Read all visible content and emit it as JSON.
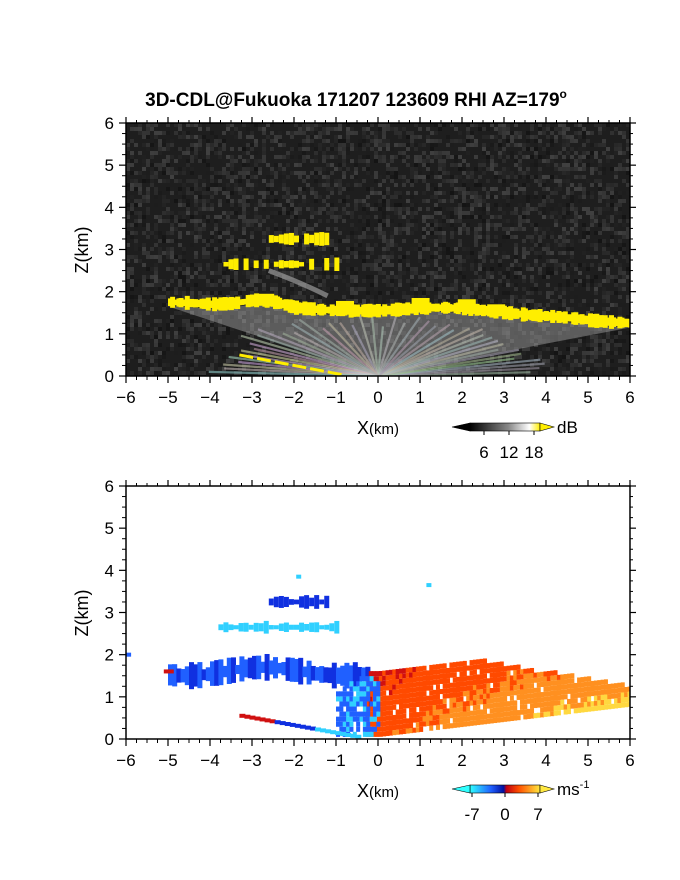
{
  "title": "3D-CDL@Fukuoka 171207 123609 RHI AZ=179",
  "title_degree": "o",
  "chart_data": [
    {
      "type": "heatmap",
      "quantity": "reflectivity",
      "xlabel_main": "X",
      "xlabel_unit": "(km)",
      "ylabel": "Z(km)",
      "xlim": [
        -6,
        6
      ],
      "ylim": [
        0,
        6
      ],
      "xticks": [
        "-6",
        "-5",
        "-4",
        "-3",
        "-2",
        "-1",
        "0",
        "1",
        "2",
        "3",
        "4",
        "5",
        "6"
      ],
      "yticks": [
        "0",
        "1",
        "2",
        "3",
        "4",
        "5",
        "6"
      ],
      "background_color": "#1e1e1e",
      "highlight_color": "#ffee00",
      "colorbar": {
        "unit": "dB",
        "ticks": [
          "6",
          "12",
          "18"
        ],
        "range": [
          0,
          21
        ]
      },
      "features": [
        {
          "name": "main-layer",
          "x": [
            -5.0,
            -4.5,
            -4.0,
            -3.5,
            -3.0,
            -2.5,
            -2.0,
            -1.5,
            -1.0,
            -0.5,
            0.0,
            0.5,
            1.0,
            1.5,
            2.0,
            2.5,
            3.0,
            3.5,
            4.0,
            4.5,
            5.0,
            5.5,
            6.0
          ],
          "z": [
            1.75,
            1.73,
            1.7,
            1.72,
            1.8,
            1.75,
            1.62,
            1.58,
            1.55,
            1.55,
            1.55,
            1.58,
            1.62,
            1.62,
            1.6,
            1.55,
            1.5,
            1.45,
            1.42,
            1.38,
            1.32,
            1.28,
            1.25
          ]
        },
        {
          "name": "upper-patch-1",
          "x": [
            -2.6,
            -1.2
          ],
          "z": [
            3.25,
            3.25
          ]
        },
        {
          "name": "upper-patch-2",
          "x": [
            -3.8,
            -1.0
          ],
          "z": [
            2.62,
            2.62
          ]
        },
        {
          "name": "low-streak",
          "x": [
            -3.3,
            -0.8
          ],
          "z": [
            0.5,
            0.02
          ]
        }
      ]
    },
    {
      "type": "heatmap",
      "quantity": "radial velocity",
      "xlabel_main": "X",
      "xlabel_unit": "(km)",
      "ylabel": "Z(km)",
      "xlim": [
        -6,
        6
      ],
      "ylim": [
        0,
        6
      ],
      "xticks": [
        "-6",
        "-5",
        "-4",
        "-3",
        "-2",
        "-1",
        "0",
        "1",
        "2",
        "3",
        "4",
        "5",
        "6"
      ],
      "yticks": [
        "0",
        "1",
        "2",
        "3",
        "4",
        "5",
        "6"
      ],
      "background_color": "#ffffff",
      "colorbar": {
        "unit": "ms",
        "unit_exp": "-1",
        "ticks": [
          "-7",
          "0",
          "7"
        ],
        "range": [
          -10,
          10
        ]
      },
      "features": [
        {
          "name": "blue-layer-west",
          "x": [
            -5.0,
            -3.0,
            -1.5,
            -0.5
          ],
          "z": [
            1.7,
            1.75,
            1.6,
            1.5
          ],
          "velocity": -6
        },
        {
          "name": "red-yellow-east",
          "x": [
            -0.2,
            1.0,
            2.0,
            3.0,
            4.0,
            5.0,
            6.0
          ],
          "z": [
            1.6,
            1.8,
            1.85,
            1.6,
            1.45,
            1.35,
            1.2
          ],
          "velocity": 5
        },
        {
          "name": "cyan-patch-upper",
          "x": [
            -3.8,
            -1.0
          ],
          "z": [
            2.62,
            2.62
          ],
          "velocity": -4
        },
        {
          "name": "blue-patch-top",
          "x": [
            -2.6,
            -1.2
          ],
          "z": [
            3.25,
            3.25
          ],
          "velocity": -7
        },
        {
          "name": "isolated-point-1",
          "x": [
            -1.9
          ],
          "z": [
            3.85
          ],
          "velocity": -3
        },
        {
          "name": "isolated-point-2",
          "x": [
            1.2
          ],
          "z": [
            3.65
          ],
          "velocity": -3
        },
        {
          "name": "edge-point-west",
          "x": [
            -5.95
          ],
          "z": [
            2.0
          ],
          "velocity": -6
        }
      ]
    }
  ]
}
